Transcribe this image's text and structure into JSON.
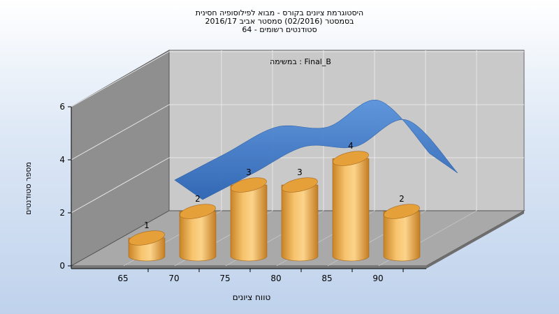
{
  "title_lines": [
    "היסטוגרמת ציונים בקורס - מבוא לפילוסופיה חסינית",
    "בסמסטר  (02/2016)  סמסטר אביב 2016/17",
    "סטודנטים רשומים - 64"
  ],
  "chart_data": {
    "type": "bar",
    "categories": [
      "65",
      "70",
      "75",
      "80",
      "85",
      "90"
    ],
    "values": [
      1,
      2,
      3,
      3,
      4,
      2
    ],
    "trend_line": [
      1,
      2,
      3,
      3,
      4,
      2
    ],
    "annotation": "במשימה : Final_B",
    "xlabel": "טווח ציונים",
    "ylabel": "מספר סטודנטים",
    "ylim": [
      0,
      6
    ],
    "yticks": [
      0,
      2,
      4,
      6
    ],
    "grid": true,
    "legend": "none"
  },
  "colors": {
    "bar": "#f2b04a",
    "bar_top": "#e6a03a",
    "trend": "#3a78c8",
    "back_wall": "#c9c9c9",
    "side_wall": "#8f8f8f",
    "floor": "#a9a9a9"
  }
}
